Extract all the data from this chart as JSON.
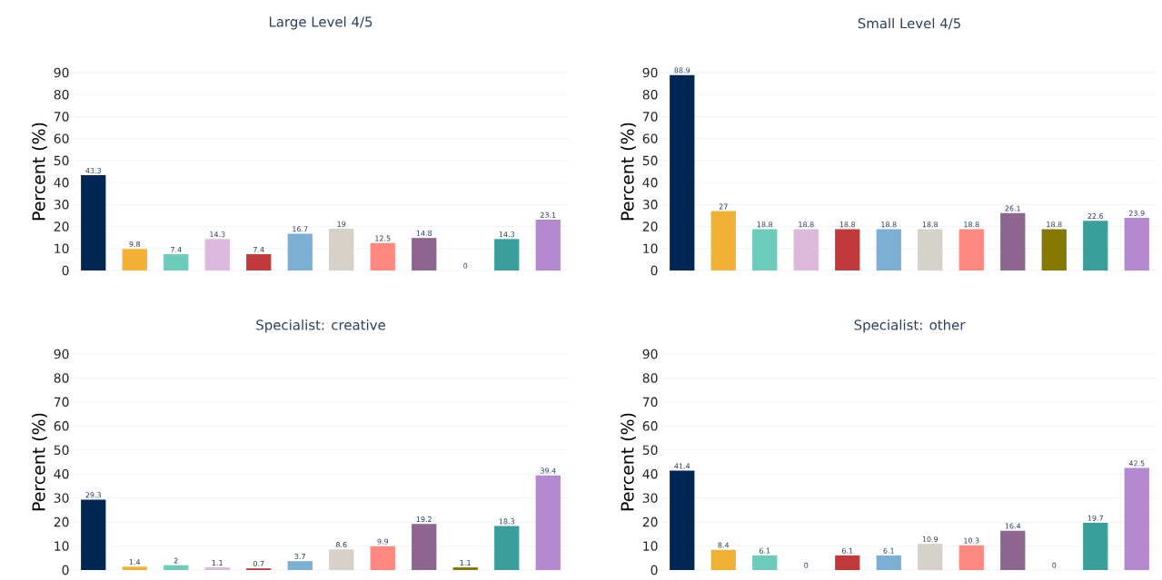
{
  "chart_data": [
    {
      "type": "bar",
      "title": "Large Level 4/5",
      "ylabel": "Percent (%)",
      "categories": [
        null,
        null,
        null,
        null,
        null,
        null,
        null,
        null,
        null,
        null,
        null,
        null
      ],
      "values": [
        43.3,
        9.8,
        7.4,
        14.3,
        7.4,
        16.7,
        19,
        12.5,
        14.8,
        0,
        14.3,
        23.1
      ],
      "value_labels": [
        "43.3",
        "9.8",
        "7.4",
        "14.3",
        "7.4",
        "16.7",
        "19",
        "12.5",
        "14.8",
        "0",
        "14.3",
        "23.1"
      ],
      "colors": [
        "#002654",
        "#f2b134",
        "#6ccbb9",
        "#dcb8dc",
        "#c0393b",
        "#7bafd4",
        "#d6d1c9",
        "#ff8880",
        "#8e6590",
        "#857800",
        "#3a9e9a",
        "#b589cf"
      ],
      "ylim": [
        0,
        90
      ],
      "yticks": [
        0,
        10,
        20,
        30,
        40,
        50,
        60,
        70,
        80,
        90
      ],
      "grid": "y",
      "tick_labels": "y"
    },
    {
      "type": "bar",
      "title": "Small Level 4/5",
      "ylabel": "Percent (%)",
      "categories": [
        null,
        null,
        null,
        null,
        null,
        null,
        null,
        null,
        null,
        null,
        null,
        null
      ],
      "values": [
        88.9,
        27,
        18.8,
        18.8,
        18.8,
        18.8,
        18.8,
        18.8,
        26.1,
        18.8,
        22.6,
        23.9
      ],
      "value_labels": [
        "88.9",
        "27",
        "18.8",
        "18.8",
        "18.8",
        "18.8",
        "18.8",
        "18.8",
        "26.1",
        "18.8",
        "22.6",
        "23.9"
      ],
      "colors": [
        "#002654",
        "#f2b134",
        "#6ccbb9",
        "#dcb8dc",
        "#c0393b",
        "#7bafd4",
        "#d6d1c9",
        "#ff8880",
        "#8e6590",
        "#857800",
        "#3a9e9a",
        "#b589cf"
      ],
      "ylim": [
        0,
        90
      ],
      "yticks": [
        0,
        10,
        20,
        30,
        40,
        50,
        60,
        70,
        80,
        90
      ],
      "grid": "y",
      "tick_labels": "y"
    },
    {
      "type": "bar",
      "title": "Specialist: creative",
      "ylabel": "Percent (%)",
      "categories": [
        null,
        null,
        null,
        null,
        null,
        null,
        null,
        null,
        null,
        null,
        null,
        null
      ],
      "values": [
        29.3,
        1.4,
        2,
        1.1,
        0.7,
        3.7,
        8.6,
        9.9,
        19.2,
        1.1,
        18.3,
        39.4
      ],
      "value_labels": [
        "29.3",
        "1.4",
        "2",
        "1.1",
        "0.7",
        "3.7",
        "8.6",
        "9.9",
        "19.2",
        "1.1",
        "18.3",
        "39.4"
      ],
      "colors": [
        "#002654",
        "#f2b134",
        "#6ccbb9",
        "#dcb8dc",
        "#c0393b",
        "#7bafd4",
        "#d6d1c9",
        "#ff8880",
        "#8e6590",
        "#857800",
        "#3a9e9a",
        "#b589cf"
      ],
      "ylim": [
        0,
        90
      ],
      "yticks": [
        0,
        10,
        20,
        30,
        40,
        50,
        60,
        70,
        80,
        90
      ],
      "grid": "y",
      "tick_labels": "y"
    },
    {
      "type": "bar",
      "title": "Specialist: other",
      "ylabel": "Percent (%)",
      "categories": [
        null,
        null,
        null,
        null,
        null,
        null,
        null,
        null,
        null,
        null,
        null,
        null
      ],
      "values": [
        41.4,
        8.4,
        6.1,
        0,
        6.1,
        6.1,
        10.9,
        10.3,
        16.4,
        0,
        19.7,
        42.5
      ],
      "value_labels": [
        "41.4",
        "8.4",
        "6.1",
        "0",
        "6.1",
        "6.1",
        "10.9",
        "10.3",
        "16.4",
        "0",
        "19.7",
        "42.5"
      ],
      "colors": [
        "#002654",
        "#f2b134",
        "#6ccbb9",
        "#dcb8dc",
        "#c0393b",
        "#7bafd4",
        "#d6d1c9",
        "#ff8880",
        "#8e6590",
        "#857800",
        "#3a9e9a",
        "#b589cf"
      ],
      "ylim": [
        0,
        90
      ],
      "yticks": [
        0,
        10,
        20,
        30,
        40,
        50,
        60,
        70,
        80,
        90
      ],
      "grid": "y",
      "tick_labels": "y"
    }
  ]
}
